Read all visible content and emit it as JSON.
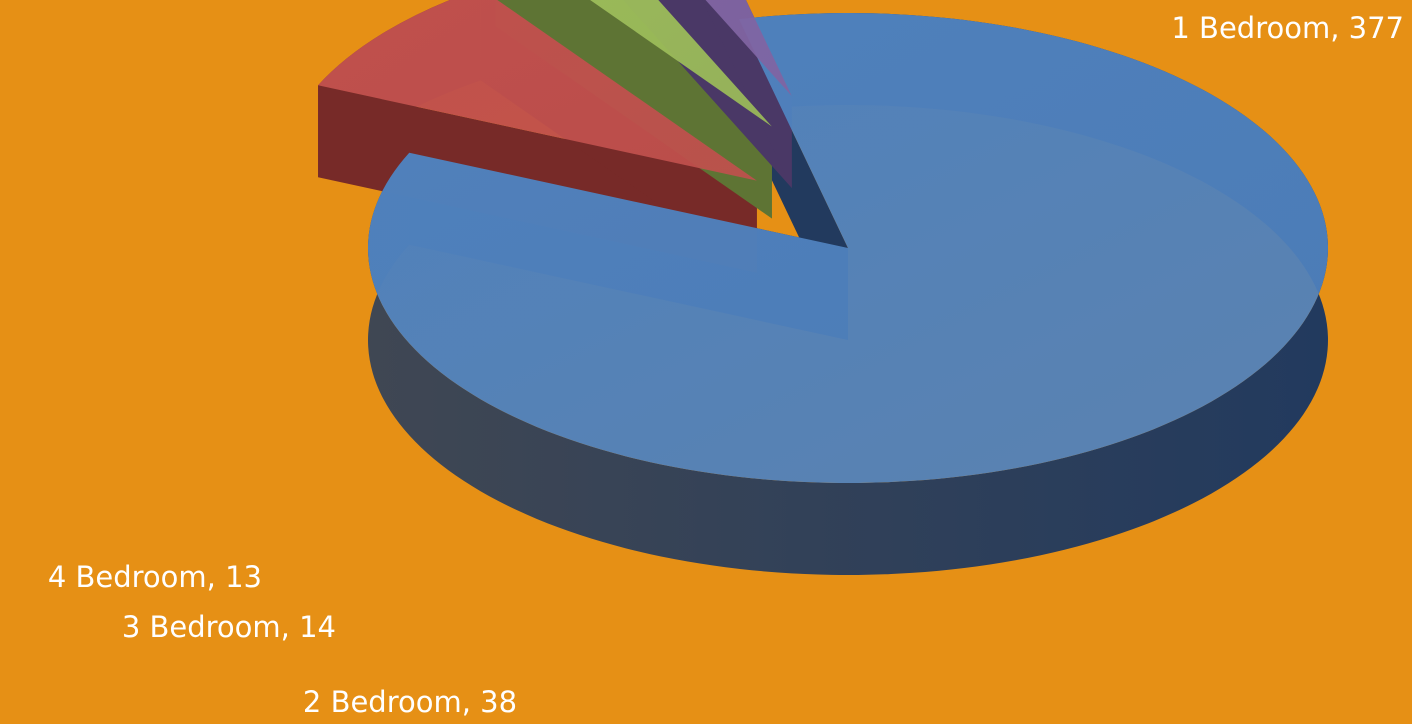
{
  "chart_data": {
    "type": "pie",
    "style": "3d-exploded",
    "background_color": "#E69015",
    "slices": [
      {
        "label": "1 Bedroom, 377",
        "category": "1 Bedroom",
        "value": 377,
        "color": "#4F81BD",
        "dark_color": "#223A5E"
      },
      {
        "label": "2 Bedroom, 38",
        "category": "2 Bedroom",
        "value": 38,
        "color": "#C0504D",
        "dark_color": "#772A28"
      },
      {
        "label": "3 Bedroom, 14",
        "category": "3 Bedroom",
        "value": 14,
        "color": "#9BBB59",
        "dark_color": "#5E7434"
      },
      {
        "label": "4 Bedroom, 13",
        "category": "4 Bedroom",
        "value": 13,
        "color": "#8064A2",
        "dark_color": "#4A3866"
      }
    ],
    "legend": "none",
    "data_labels": "category, value"
  }
}
